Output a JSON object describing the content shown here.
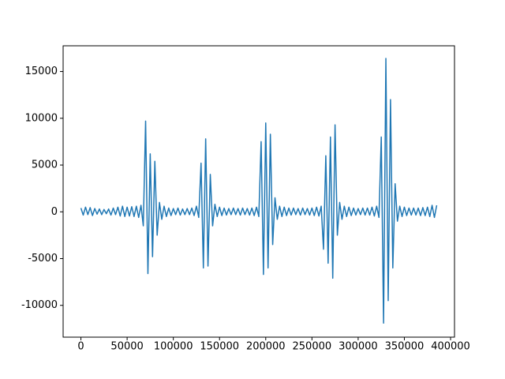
{
  "chart_data": {
    "type": "line",
    "color": "#1f77b4",
    "xlim": [
      -19250,
      404250
    ],
    "ylim": [
      -13400,
      17750
    ],
    "xticks": [
      0,
      50000,
      100000,
      150000,
      200000,
      250000,
      300000,
      350000,
      400000
    ],
    "yticks": [
      -10000,
      -5000,
      0,
      5000,
      10000,
      15000
    ],
    "x": [
      0,
      2500,
      5000,
      7500,
      10000,
      12500,
      15000,
      17500,
      20000,
      22500,
      25000,
      27500,
      30000,
      32500,
      35000,
      37500,
      40000,
      42500,
      45000,
      47500,
      50000,
      52500,
      55000,
      57500,
      60000,
      62500,
      65000,
      67500,
      70000,
      72500,
      75000,
      77500,
      80000,
      82500,
      85000,
      87500,
      90000,
      92500,
      95000,
      97500,
      100000,
      102500,
      105000,
      107500,
      110000,
      112500,
      115000,
      117500,
      120000,
      122500,
      125000,
      127500,
      130000,
      132500,
      135000,
      137500,
      140000,
      142500,
      145000,
      147500,
      150000,
      152500,
      155000,
      157500,
      160000,
      162500,
      165000,
      167500,
      170000,
      172500,
      175000,
      177500,
      180000,
      182500,
      185000,
      187500,
      190000,
      192500,
      195000,
      197500,
      200000,
      202500,
      205000,
      207500,
      210000,
      212500,
      215000,
      217500,
      220000,
      222500,
      225000,
      227500,
      230000,
      232500,
      235000,
      237500,
      240000,
      242500,
      245000,
      247500,
      250000,
      252500,
      255000,
      257500,
      260000,
      262500,
      265000,
      267500,
      270000,
      272500,
      275000,
      277500,
      280000,
      282500,
      285000,
      287500,
      290000,
      292500,
      295000,
      297500,
      300000,
      302500,
      305000,
      307500,
      310000,
      312500,
      315000,
      317500,
      320000,
      322500,
      325000,
      327500,
      330000,
      332500,
      335000,
      337500,
      340000,
      342500,
      345000,
      347500,
      350000,
      352500,
      355000,
      357500,
      360000,
      362500,
      365000,
      367500,
      370000,
      372500,
      375000,
      377500,
      380000,
      382500,
      385000
    ],
    "values": [
      400,
      -350,
      500,
      -300,
      450,
      -400,
      350,
      -250,
      300,
      -300,
      250,
      -200,
      300,
      -350,
      400,
      -300,
      500,
      -450,
      600,
      -500,
      500,
      -450,
      550,
      -500,
      600,
      -600,
      700,
      -1500,
      9700,
      -6600,
      6200,
      -4800,
      5400,
      -2500,
      1000,
      -800,
      600,
      -500,
      400,
      -400,
      350,
      -300,
      400,
      -350,
      300,
      -300,
      350,
      -300,
      400,
      -400,
      600,
      -600,
      5200,
      -6000,
      7800,
      -5800,
      4000,
      -1500,
      800,
      -500,
      500,
      -400,
      400,
      -350,
      350,
      -300,
      400,
      -300,
      350,
      -350,
      400,
      -300,
      350,
      -350,
      400,
      -400,
      500,
      -500,
      7500,
      -6700,
      9500,
      -6000,
      8300,
      -3500,
      1500,
      -800,
      600,
      -500,
      500,
      -400,
      400,
      -350,
      400,
      -300,
      350,
      -350,
      400,
      -300,
      350,
      -350,
      400,
      -400,
      500,
      -450,
      600,
      -4000,
      6000,
      -5500,
      8000,
      -7100,
      9300,
      -2500,
      1000,
      -800,
      600,
      -500,
      500,
      -400,
      400,
      -350,
      350,
      -300,
      400,
      -350,
      400,
      -350,
      500,
      -450,
      600,
      -600,
      8000,
      -11900,
      16400,
      -9500,
      12000,
      -6000,
      3000,
      -1000,
      600,
      -500,
      500,
      -400,
      400,
      -350,
      400,
      -350,
      400,
      -400,
      450,
      -400,
      500,
      -500,
      700,
      -600,
      700
    ]
  }
}
